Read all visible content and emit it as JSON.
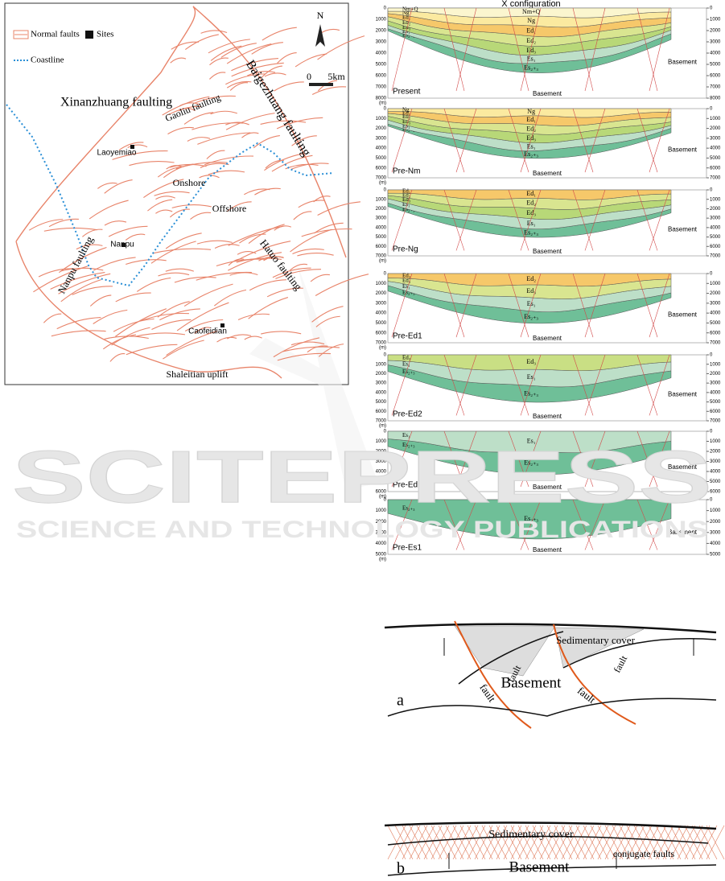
{
  "map": {
    "legend": [
      "Normal faults",
      "Sites",
      "Coastline"
    ],
    "north": "N",
    "scale": [
      "0",
      "5km"
    ],
    "labels": [
      "Xinanzhuang faulting",
      "Gaoliu faulting",
      "Baigezhuang faulting",
      "Laoyemiao",
      "Onshore",
      "Offshore",
      "Nanpu",
      "Nanpu faulting",
      "Hatuo faulting",
      "Caofeidian",
      "Shaleitian uplift"
    ],
    "fault_color": "#e8846a",
    "coast_color": "#2a8fd6"
  },
  "sections": {
    "title": "X configuration",
    "unit": "(m)",
    "basement": "Basement",
    "panels": [
      {
        "name": "Present",
        "depths": [
          0,
          1000,
          2000,
          3000,
          4000,
          5000,
          6000,
          7000,
          8000
        ],
        "layers": [
          {
            "label": "Nm+Q",
            "color": "#fbf6cf"
          },
          {
            "label": "Ng",
            "color": "#fbeaa0"
          },
          {
            "label": "Ed₁",
            "color": "#f6c86a"
          },
          {
            "label": "Ed₂",
            "color": "#d9e590"
          },
          {
            "label": "Ed₃",
            "color": "#b8d878"
          },
          {
            "label": "Es₁",
            "color": "#bddfc8"
          },
          {
            "label": "Es₂₊₃",
            "color": "#6fbf98"
          }
        ]
      },
      {
        "name": "Pre-Nm",
        "depths": [
          0,
          1000,
          2000,
          3000,
          4000,
          5000,
          6000,
          7000
        ],
        "layers": [
          {
            "label": "Ng",
            "color": "#fbeaa0"
          },
          {
            "label": "Ed₁",
            "color": "#f6c86a"
          },
          {
            "label": "Ed₂",
            "color": "#d9e590"
          },
          {
            "label": "Ed₃",
            "color": "#b8d878"
          },
          {
            "label": "Es₁",
            "color": "#bddfc8"
          },
          {
            "label": "Es₂₊₃",
            "color": "#6fbf98"
          }
        ]
      },
      {
        "name": "Pre-Ng",
        "depths": [
          0,
          1000,
          2000,
          3000,
          4000,
          5000,
          6000,
          7000
        ],
        "layers": [
          {
            "label": "Ed₁",
            "color": "#f6c86a"
          },
          {
            "label": "Ed₂",
            "color": "#d9e590"
          },
          {
            "label": "Ed₃",
            "color": "#b8d878"
          },
          {
            "label": "Es₁",
            "color": "#bddfc8"
          },
          {
            "label": "Es₂₊₃",
            "color": "#6fbf98"
          }
        ]
      },
      {
        "name": "Pre-Ed1",
        "depths": [
          0,
          1000,
          2000,
          3000,
          4000,
          5000,
          6000,
          7000
        ],
        "layers": [
          {
            "label": "Ed₂",
            "color": "#f6c86a"
          },
          {
            "label": "Ed₃",
            "color": "#d9e590"
          },
          {
            "label": "Es₁",
            "color": "#bddfc8"
          },
          {
            "label": "Es₂₊₃",
            "color": "#6fbf98"
          }
        ]
      },
      {
        "name": "Pre-Ed2",
        "depths": [
          0,
          1000,
          2000,
          3000,
          4000,
          5000,
          6000,
          7000
        ],
        "layers": [
          {
            "label": "Ed₃",
            "color": "#c9df84"
          },
          {
            "label": "Es₁",
            "color": "#bddfc8"
          },
          {
            "label": "Es₂₊₃",
            "color": "#6fbf98"
          }
        ]
      },
      {
        "name": "Pre-Ed3",
        "depths": [
          0,
          1000,
          2000,
          3000,
          4000,
          5000,
          6000
        ],
        "layers": [
          {
            "label": "Es₁",
            "color": "#bddfc8"
          },
          {
            "label": "Es₂₊₃",
            "color": "#6fbf98"
          }
        ]
      },
      {
        "name": "Pre-Es1",
        "depths": [
          0,
          1000,
          2000,
          3000,
          4000,
          5000
        ],
        "layers": [
          {
            "label": "Es₂₊₃",
            "color": "#6fbf98"
          }
        ]
      }
    ]
  },
  "diagram_a": {
    "tag": "a",
    "labels": [
      "Sedimentary cover",
      "fault",
      "fault",
      "fault",
      "fault",
      "Basement"
    ]
  },
  "diagram_b": {
    "tag": "b",
    "labels": [
      "Sedimentary cover",
      "conjugate faults",
      "Basement"
    ]
  },
  "watermark": [
    "SCITEPRESS",
    "SCIENCE AND TECHNOLOGY PUBLICATIONS"
  ]
}
